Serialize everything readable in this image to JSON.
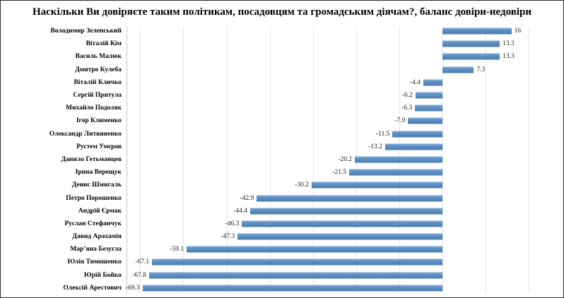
{
  "title": "Наскільки Ви довіряєте таким політикам, посадовцям та громадським діячам?, баланс довіри-недовіри",
  "chart_data": {
    "type": "bar",
    "orientation": "horizontal",
    "title": "Наскільки Ви довіряєте таким політикам, посадовцям та громадським діячам?, баланс довіри-недовіри",
    "xlabel": "",
    "ylabel": "",
    "categories": [
      "Володимир Зеленський",
      "Віталій Кім",
      "Василь Малюк",
      "Дмитро Кулеба",
      "Віталій Кличко",
      "Сергій Притула",
      "Михайло Подоляк",
      "Ігор Клименко",
      "Олександр Литвиненко",
      "Рустем Умєров",
      "Данило Гетьманцев",
      "Ірина Верещук",
      "Денис Шмигаль",
      "Петро Порошенко",
      "Андрій Єрмак",
      "Руслан Стефанчук",
      "Давид Арахамія",
      "Мар’яна Безугла",
      "Юлія Тимошенко",
      "Юрій Бойко",
      "Олексій Арестович"
    ],
    "values": [
      16,
      13.3,
      13.3,
      7.3,
      -4.4,
      -6.2,
      -6.3,
      -7.9,
      -11.5,
      -13.2,
      -20.2,
      -21.5,
      -30.2,
      -42.9,
      -44.4,
      -46.3,
      -47.3,
      -59.1,
      -67.1,
      -67.8,
      -69.3
    ],
    "bar_color": "#5b8ec4",
    "grid": true,
    "legend": "none",
    "axis": {
      "zero_percent": 73,
      "grid_min": -70,
      "grid_max": 20,
      "grid_step": 10
    }
  }
}
